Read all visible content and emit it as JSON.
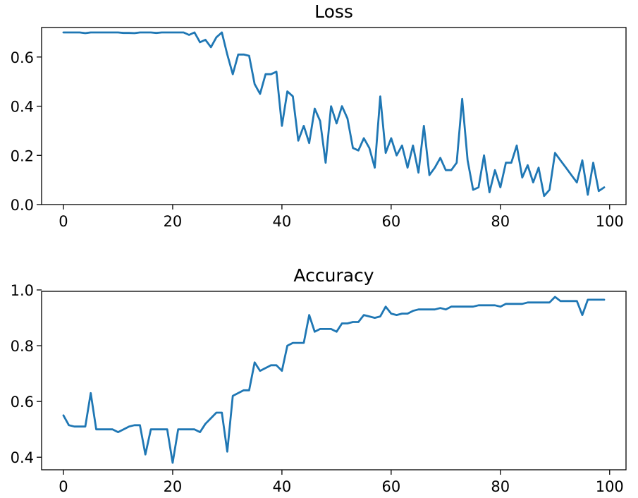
{
  "chart_data": [
    {
      "type": "line",
      "title": "Loss",
      "xlabel": "",
      "ylabel": "",
      "xlim": [
        -4,
        103
      ],
      "ylim": [
        0,
        0.72
      ],
      "xticks": [
        "0",
        "20",
        "40",
        "60",
        "80",
        "100"
      ],
      "yticks": [
        "0.0",
        "0.2",
        "0.4",
        "0.6"
      ],
      "grid": false,
      "color": "#1f77b4",
      "x": [
        0,
        1,
        2,
        3,
        4,
        5,
        6,
        7,
        8,
        9,
        10,
        11,
        12,
        13,
        14,
        15,
        16,
        17,
        18,
        19,
        20,
        21,
        22,
        23,
        24,
        25,
        26,
        27,
        28,
        29,
        30,
        31,
        32,
        33,
        34,
        35,
        36,
        37,
        38,
        39,
        40,
        41,
        42,
        43,
        44,
        45,
        46,
        47,
        48,
        49,
        50,
        51,
        52,
        53,
        54,
        55,
        56,
        57,
        58,
        59,
        60,
        61,
        62,
        63,
        64,
        65,
        66,
        67,
        68,
        69,
        70,
        71,
        72,
        73,
        74,
        75,
        76,
        77,
        78,
        79,
        80,
        81,
        82,
        83,
        84,
        85,
        86,
        87,
        88,
        89,
        90,
        91,
        92,
        93,
        94,
        95,
        96,
        97,
        98,
        99
      ],
      "y": [
        0.7,
        0.7,
        0.7,
        0.7,
        0.697,
        0.7,
        0.7,
        0.7,
        0.7,
        0.7,
        0.7,
        0.698,
        0.698,
        0.697,
        0.7,
        0.7,
        0.7,
        0.698,
        0.7,
        0.7,
        0.7,
        0.7,
        0.7,
        0.69,
        0.7,
        0.66,
        0.67,
        0.64,
        0.68,
        0.7,
        0.61,
        0.53,
        0.61,
        0.61,
        0.605,
        0.49,
        0.45,
        0.53,
        0.53,
        0.54,
        0.32,
        0.46,
        0.44,
        0.26,
        0.32,
        0.25,
        0.39,
        0.34,
        0.17,
        0.4,
        0.33,
        0.4,
        0.35,
        0.23,
        0.22,
        0.27,
        0.23,
        0.15,
        0.44,
        0.21,
        0.27,
        0.2,
        0.24,
        0.15,
        0.24,
        0.13,
        0.32,
        0.12,
        0.15,
        0.19,
        0.14,
        0.14,
        0.17,
        0.43,
        0.18,
        0.06,
        0.07,
        0.2,
        0.05,
        0.14,
        0.07,
        0.17,
        0.17,
        0.24,
        0.11,
        0.16,
        0.09,
        0.15,
        0.035,
        0.06,
        0.21,
        0.18,
        0.15,
        0.12,
        0.09,
        0.18,
        0.04,
        0.17,
        0.055,
        0.07
      ]
    },
    {
      "type": "line",
      "title": "Accuracy",
      "xlabel": "",
      "ylabel": "",
      "xlim": [
        -4,
        103
      ],
      "ylim": [
        0.355,
        0.995
      ],
      "xticks": [
        "0",
        "20",
        "40",
        "60",
        "80",
        "100"
      ],
      "yticks": [
        "0.4",
        "0.6",
        "0.8",
        "1.0"
      ],
      "grid": false,
      "color": "#1f77b4",
      "x": [
        0,
        1,
        2,
        3,
        4,
        5,
        6,
        7,
        8,
        9,
        10,
        11,
        12,
        13,
        14,
        15,
        16,
        17,
        18,
        19,
        20,
        21,
        22,
        23,
        24,
        25,
        26,
        27,
        28,
        29,
        30,
        31,
        32,
        33,
        34,
        35,
        36,
        37,
        38,
        39,
        40,
        41,
        42,
        43,
        44,
        45,
        46,
        47,
        48,
        49,
        50,
        51,
        52,
        53,
        54,
        55,
        56,
        57,
        58,
        59,
        60,
        61,
        62,
        63,
        64,
        65,
        66,
        67,
        68,
        69,
        70,
        71,
        72,
        73,
        74,
        75,
        76,
        77,
        78,
        79,
        80,
        81,
        82,
        83,
        84,
        85,
        86,
        87,
        88,
        89,
        90,
        91,
        92,
        93,
        94,
        95,
        96,
        97,
        98,
        99
      ],
      "y": [
        0.55,
        0.515,
        0.51,
        0.51,
        0.51,
        0.63,
        0.5,
        0.5,
        0.5,
        0.5,
        0.49,
        0.5,
        0.51,
        0.515,
        0.515,
        0.41,
        0.5,
        0.5,
        0.5,
        0.5,
        0.38,
        0.5,
        0.5,
        0.5,
        0.5,
        0.49,
        0.52,
        0.54,
        0.56,
        0.56,
        0.42,
        0.62,
        0.63,
        0.64,
        0.64,
        0.74,
        0.71,
        0.72,
        0.73,
        0.73,
        0.71,
        0.8,
        0.81,
        0.81,
        0.81,
        0.91,
        0.85,
        0.86,
        0.86,
        0.86,
        0.85,
        0.88,
        0.88,
        0.885,
        0.885,
        0.91,
        0.905,
        0.9,
        0.905,
        0.94,
        0.915,
        0.91,
        0.915,
        0.915,
        0.925,
        0.93,
        0.93,
        0.93,
        0.93,
        0.935,
        0.93,
        0.94,
        0.94,
        0.94,
        0.94,
        0.94,
        0.945,
        0.945,
        0.945,
        0.945,
        0.94,
        0.95,
        0.95,
        0.95,
        0.95,
        0.955,
        0.955,
        0.955,
        0.955,
        0.955,
        0.975,
        0.96,
        0.96,
        0.96,
        0.96,
        0.91,
        0.965,
        0.965,
        0.965,
        0.965
      ]
    }
  ]
}
